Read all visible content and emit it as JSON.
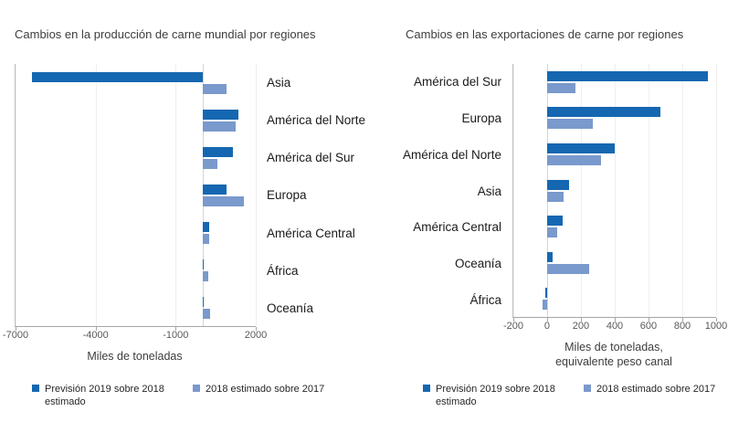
{
  "chart_data": [
    {
      "type": "bar",
      "orientation": "horizontal",
      "title": "Cambios en la producción de carne mundial por regiones",
      "xlabel": "Miles de toneladas",
      "xlim": [
        -7000,
        2000
      ],
      "xticks": [
        -7000,
        -4000,
        -1000,
        2000
      ],
      "grid": false,
      "legend_position": "bottom",
      "labels_side": "right",
      "categories": [
        "Asia",
        "América del Norte",
        "América del Sur",
        "Europa",
        "América Central",
        "África",
        "Oceanía"
      ],
      "series": [
        {
          "name": "Previsión 2019 sobre 2018 estimado",
          "color": "#1567b1",
          "values": [
            -6400,
            1350,
            1150,
            900,
            250,
            60,
            40
          ]
        },
        {
          "name": "2018 estimado sobre 2017",
          "color": "#7a99cc",
          "values": [
            900,
            1250,
            550,
            1550,
            250,
            230,
            280
          ]
        }
      ]
    },
    {
      "type": "bar",
      "orientation": "horizontal",
      "title": "Cambios en las exportaciones de carne por regiones",
      "xlabel": "Miles de toneladas,",
      "xlabel2": "equivalente peso canal",
      "xlim": [
        -200,
        1000
      ],
      "xticks": [
        -200,
        0,
        200,
        400,
        600,
        800,
        1000
      ],
      "grid": false,
      "legend_position": "bottom",
      "labels_side": "left",
      "categories": [
        "América del Sur",
        "Europa",
        "América del Norte",
        "Asia",
        "América Central",
        "Oceanía",
        "África"
      ],
      "series": [
        {
          "name": "Previsión 2019 sobre 2018 estimado",
          "color": "#1567b1",
          "values": [
            950,
            670,
            400,
            130,
            90,
            30,
            -10
          ]
        },
        {
          "name": "2018 estimado sobre 2017",
          "color": "#7a99cc",
          "values": [
            170,
            270,
            320,
            100,
            60,
            250,
            -25
          ]
        }
      ]
    }
  ]
}
